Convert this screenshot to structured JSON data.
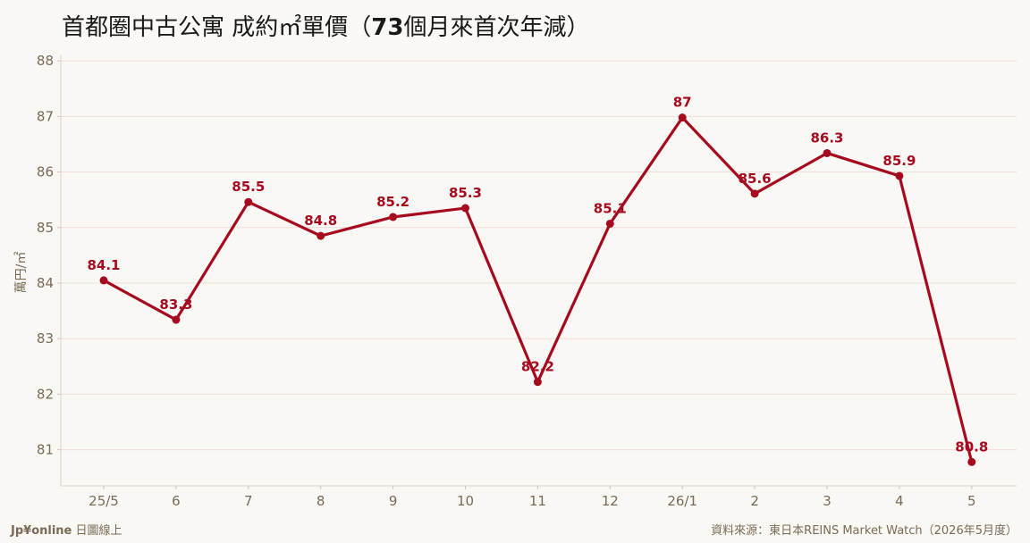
{
  "title_pre": "首都圈中古公寓 成約㎡單價（",
  "title_num": "73",
  "title_post": "個月來首次年減）",
  "footer": {
    "brand_bold": "Jp¥online",
    "brand_rest": " 日圖線上",
    "source": "資料來源：東日本REINS Market Watch（2026年5月度）"
  },
  "colors": {
    "line": "#a50a1e",
    "grid": "#efdcd9",
    "axis_text": "#7a6a55",
    "background": "#faf8f5"
  },
  "chart_data": {
    "type": "line",
    "title": "首都圈中古公寓 成約㎡單價（73個月來首次年減）",
    "xlabel": "",
    "ylabel": "萬円/㎡",
    "categories": [
      "25/5",
      "6",
      "7",
      "8",
      "9",
      "10",
      "11",
      "12",
      "26/1",
      "2",
      "3",
      "4",
      "5"
    ],
    "series": [
      {
        "values": [
          84.05,
          83.34,
          85.46,
          84.85,
          85.19,
          85.35,
          82.22,
          85.07,
          86.98,
          85.61,
          86.34,
          85.93,
          80.78
        ],
        "labels": [
          "84.1",
          "83.3",
          "85.5",
          "84.8",
          "85.2",
          "85.3",
          "82.2",
          "85.1",
          "87",
          "85.6",
          "86.3",
          "85.9",
          "80.8"
        ]
      }
    ],
    "yticks": [
      81,
      82,
      83,
      84,
      85,
      86,
      87,
      88
    ],
    "ylim": [
      80.35,
      88.1
    ],
    "grid": true
  }
}
